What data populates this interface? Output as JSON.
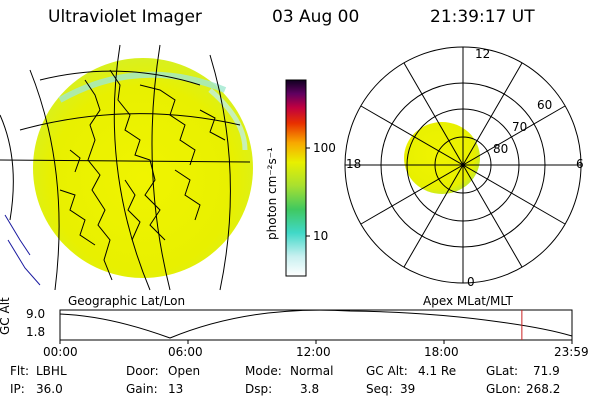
{
  "header": {
    "title": "Ultraviolet Imager",
    "date": "03 Aug 00",
    "time": "21:39:17 UT"
  },
  "colorbar": {
    "unit_label": "photon cm⁻²s⁻¹",
    "ticks": [
      "100",
      "10"
    ]
  },
  "polar": {
    "mlt_labels": {
      "top": "12",
      "left": "18",
      "right": "6",
      "bottom": "0"
    },
    "lat_labels": [
      "60",
      "70",
      "80"
    ]
  },
  "panel_labels": {
    "left": "Geographic Lat/Lon",
    "right": "Apex MLat/MLT"
  },
  "altitude_plot": {
    "ylabel": "GC Alt",
    "ymax_label": "9.0",
    "ymin_label": "1.8",
    "xticks": [
      "00:00",
      "06:00",
      "12:00",
      "18:00",
      "23:59"
    ],
    "current_time_hours": 21.65
  },
  "info": {
    "filter": {
      "label": "Flt:",
      "value": "LBHL"
    },
    "ip": {
      "label": "IP:",
      "value": "36.0"
    },
    "door": {
      "label": "Door:",
      "value": "Open"
    },
    "gain": {
      "label": "Gain:",
      "value": "13"
    },
    "mode": {
      "label": "Mode:",
      "value": "Normal"
    },
    "dsp": {
      "label": "Dsp:",
      "value": "3.8"
    },
    "gc_alt": {
      "label": "GC Alt:",
      "value": "4.1 Re"
    },
    "seq": {
      "label": "Seq:",
      "value": "39"
    },
    "glat": {
      "label": "GLat:",
      "value": "71.9"
    },
    "glon": {
      "label": "GLon:",
      "value": "268.2"
    }
  },
  "colors": {
    "emission_yellow": "#e8f000",
    "emission_green": "#b8e838",
    "marker_red": "#cc2222",
    "coast_blue": "#1a1aa0"
  }
}
